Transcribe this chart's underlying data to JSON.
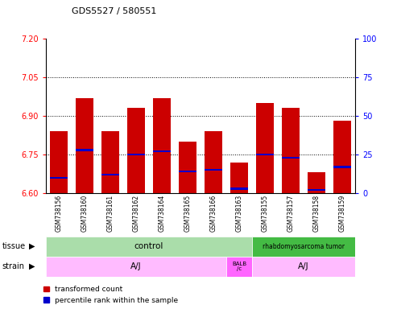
{
  "title": "GDS5527 / 580551",
  "samples": [
    "GSM738156",
    "GSM738160",
    "GSM738161",
    "GSM738162",
    "GSM738164",
    "GSM738165",
    "GSM738166",
    "GSM738163",
    "GSM738155",
    "GSM738157",
    "GSM738158",
    "GSM738159"
  ],
  "transformed_count": [
    6.84,
    6.97,
    6.84,
    6.93,
    6.97,
    6.8,
    6.84,
    6.72,
    6.95,
    6.93,
    6.68,
    6.88
  ],
  "percentile_rank": [
    10,
    28,
    12,
    25,
    27,
    14,
    15,
    3,
    25,
    23,
    2,
    17
  ],
  "bar_bottom": 6.6,
  "ylim": [
    6.6,
    7.2
  ],
  "y2lim": [
    0,
    100
  ],
  "yticks": [
    6.6,
    6.75,
    6.9,
    7.05,
    7.2
  ],
  "y2ticks": [
    0,
    25,
    50,
    75,
    100
  ],
  "bar_color": "#cc0000",
  "percentile_color": "#0000cc",
  "tissue_control_color": "#aaddaa",
  "tissue_rhabdo_color": "#44bb44",
  "strain_aj_color": "#ffbbff",
  "strain_balb_color": "#ff66ff",
  "tissue_groups": [
    {
      "label": "control",
      "start": 0,
      "end": 8
    },
    {
      "label": "rhabdomyosarcoma tumor",
      "start": 8,
      "end": 12
    }
  ],
  "strain_groups": [
    {
      "label": "A/J",
      "start": 0,
      "end": 7
    },
    {
      "label": "BALB\n/c",
      "start": 7,
      "end": 8
    },
    {
      "label": "A/J",
      "start": 8,
      "end": 12
    }
  ],
  "tissue_label": "tissue",
  "strain_label": "strain",
  "legend_items": [
    {
      "label": "transformed count",
      "color": "#cc0000"
    },
    {
      "label": "percentile rank within the sample",
      "color": "#0000cc"
    }
  ],
  "bar_width": 0.7,
  "blue_bar_thickness": 0.008
}
